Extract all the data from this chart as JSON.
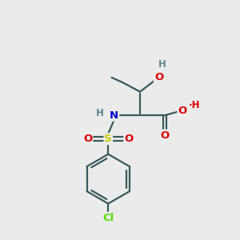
{
  "background_color": "#ebebeb",
  "bond_color": "#3a5a5a",
  "colors": {
    "C": "#3a5a5a",
    "H": "#5a8a8a",
    "O": "#dd0000",
    "N": "#0000cc",
    "S": "#cccc00",
    "Cl": "#55dd00"
  },
  "ring_color": "#3a5a5a"
}
